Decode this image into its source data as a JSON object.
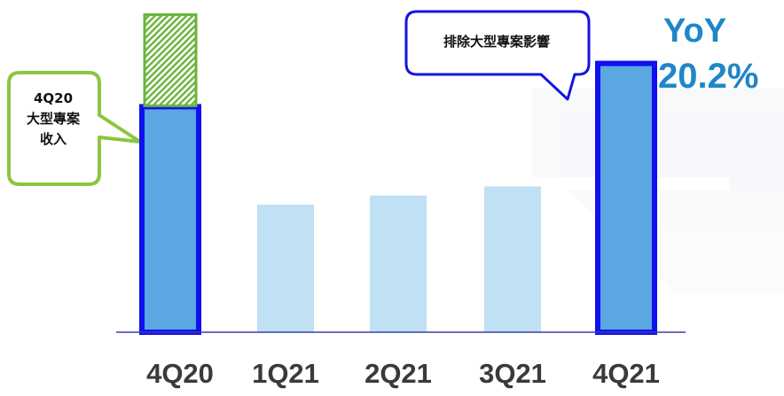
{
  "chart_data": {
    "type": "bar",
    "categories": [
      "4Q20",
      "1Q21",
      "2Q21",
      "3Q21",
      "4Q21"
    ],
    "values": [
      99,
      56,
      60,
      64,
      118
    ],
    "stacked_segment": {
      "category": "4Q20",
      "value": 40
    },
    "highlighted_categories": [
      "4Q20",
      "4Q21"
    ],
    "ylim": [
      0,
      140
    ],
    "grid": false,
    "colors": {
      "highlight_fill": "#5aa7e2",
      "highlight_border": "#1010f0",
      "regular_fill": "#bfe1f3",
      "segment_fill": "#6ab43c",
      "axis": "#3b3fa3",
      "arrow": "#1c3fd6",
      "yoy_text": "#1f86c8",
      "left_callout_border": "#8cc63f",
      "top_callout_border": "#1414e0"
    }
  },
  "callouts": {
    "left": {
      "line1": "4Q20",
      "line2": "大型專案",
      "line3": "收入"
    },
    "top": {
      "text": "排除大型專案影響"
    }
  },
  "yoy": {
    "label": "YoY",
    "value": "20.2%"
  }
}
